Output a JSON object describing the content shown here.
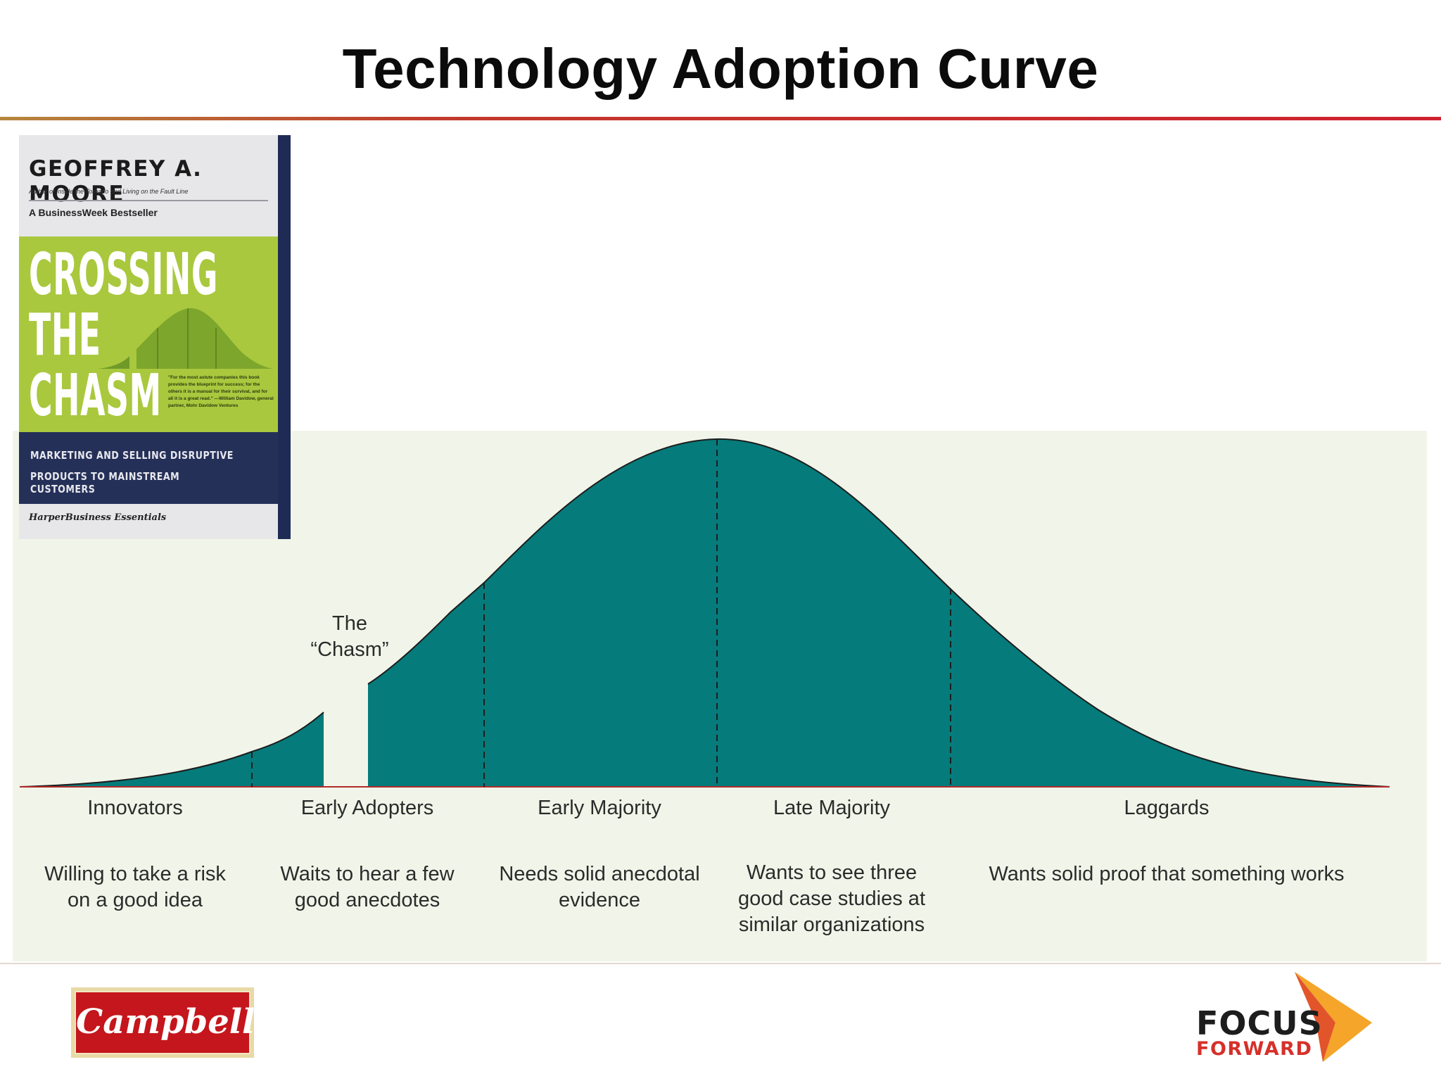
{
  "header": {
    "title": "Technology Adoption Curve"
  },
  "book": {
    "author": "GEOFFREY A. MOORE",
    "author_note": "Author of Inside the Tornado and Living on the Fault Line",
    "bestseller": "A BusinessWeek Bestseller",
    "title_lines": [
      "CROSSING",
      "THE",
      "CHASM"
    ],
    "quote": "\"For the most astute companies this book provides the blueprint for success; for the others it is a manual for their survival, and for all it is a great read.\" —William Davidow, general partner, Mohr Davidow Ventures",
    "subtitle_lines": [
      "MARKETING AND SELLING DISRUPTIVE",
      "PRODUCTS TO MAINSTREAM CUSTOMERS"
    ],
    "publisher": "HarperBusiness Essentials",
    "colors": {
      "green": "#a9c83e",
      "navy": "#243058",
      "paper": "#e7e7ea"
    }
  },
  "diagram": {
    "chasm_label_lines": [
      "The",
      "“Chasm”"
    ],
    "fill_color": "#067b7b",
    "segments": [
      {
        "label": "Innovators",
        "description_lines": [
          "Willing to take a risk",
          "on a good idea"
        ]
      },
      {
        "label": "Early Adopters",
        "description_lines": [
          "Waits to hear a few",
          "good anecdotes"
        ]
      },
      {
        "label": "Early Majority",
        "description_lines": [
          "Needs solid anecdotal",
          "evidence"
        ]
      },
      {
        "label": "Late Majority",
        "description_lines": [
          "Wants to see three",
          "good case studies at",
          "similar organizations"
        ]
      },
      {
        "label": "Laggards",
        "description_lines": [
          "Wants solid proof that something works"
        ]
      }
    ]
  },
  "footer": {
    "left_logo_text": "Campbell's",
    "right_logo_lines": [
      "FOCUS",
      "FORWARD"
    ],
    "colors": {
      "campbells_red": "#c4161c",
      "focus_orange": "#f4a52a",
      "focus_red": "#d6302a"
    }
  }
}
